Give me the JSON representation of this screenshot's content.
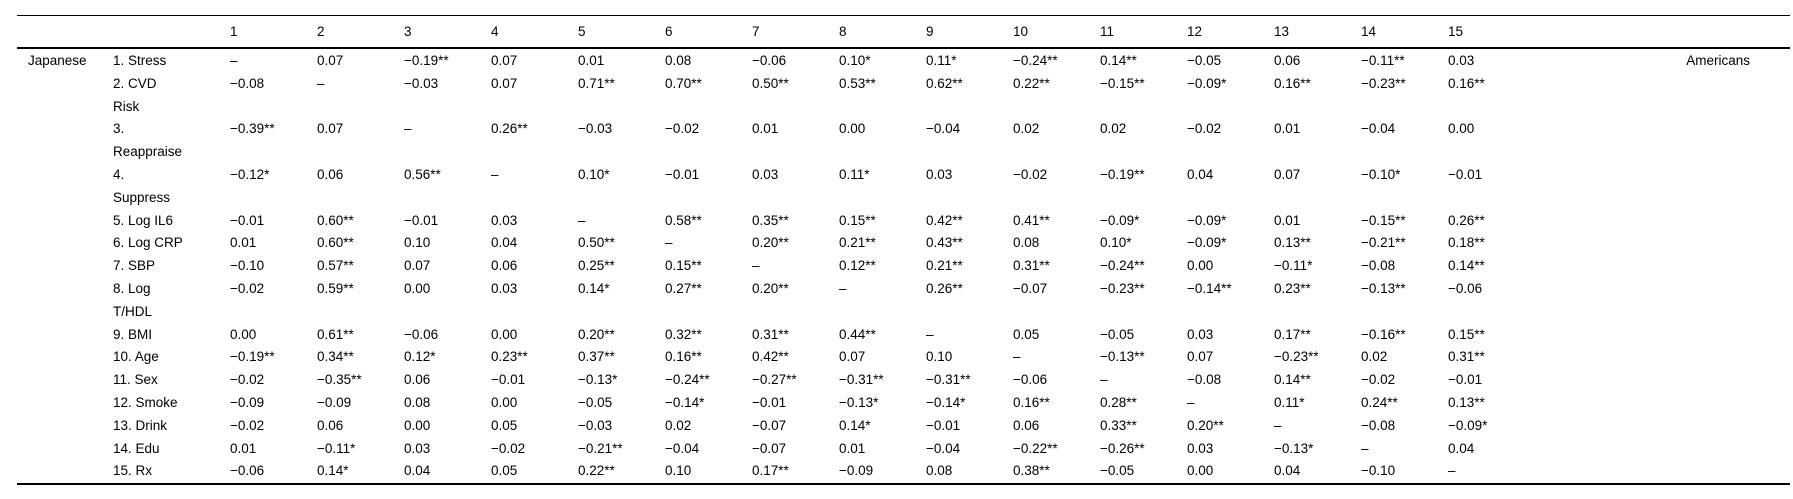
{
  "table": {
    "row_group_label": "Japanese",
    "col_group_label": "Americans",
    "col_headers": [
      "1",
      "2",
      "3",
      "4",
      "5",
      "6",
      "7",
      "8",
      "9",
      "10",
      "11",
      "12",
      "13",
      "14",
      "15"
    ],
    "diagonal_marker": "–",
    "rows": [
      {
        "name": "1. Stress",
        "values": [
          "–",
          "0.07",
          "−0.19**",
          "0.07",
          "0.01",
          "0.08",
          "−0.06",
          "0.10*",
          "0.11*",
          "−0.24**",
          "0.14**",
          "−0.05",
          "0.06",
          "−0.11**",
          "0.03"
        ]
      },
      {
        "name": "2. CVD\nRisk",
        "values": [
          "−0.08",
          "–",
          "−0.03",
          "0.07",
          "0.71**",
          "0.70**",
          "0.50**",
          "0.53**",
          "0.62**",
          "0.22**",
          "−0.15**",
          "−0.09*",
          "0.16**",
          "−0.23**",
          "0.16**"
        ]
      },
      {
        "name": "3.\nReappraise",
        "values": [
          "−0.39**",
          "0.07",
          "–",
          "0.26**",
          "−0.03",
          "−0.02",
          "0.01",
          "0.00",
          "−0.04",
          "0.02",
          "0.02",
          "−0.02",
          "0.01",
          "−0.04",
          "0.00"
        ]
      },
      {
        "name": "4.\nSuppress",
        "values": [
          "−0.12*",
          "0.06",
          "0.56**",
          "–",
          "0.10*",
          "−0.01",
          "0.03",
          "0.11*",
          "0.03",
          "−0.02",
          "−0.19**",
          "0.04",
          "0.07",
          "−0.10*",
          "−0.01"
        ]
      },
      {
        "name": "5. Log IL6",
        "values": [
          "−0.01",
          "0.60**",
          "−0.01",
          "0.03",
          "–",
          "0.58**",
          "0.35**",
          "0.15**",
          "0.42**",
          "0.41**",
          "−0.09*",
          "−0.09*",
          "0.01",
          "−0.15**",
          "0.26**"
        ]
      },
      {
        "name": "6. Log CRP",
        "values": [
          "0.01",
          "0.60**",
          "0.10",
          "0.04",
          "0.50**",
          "–",
          "0.20**",
          "0.21**",
          "0.43**",
          "0.08",
          "0.10*",
          "−0.09*",
          "0.13**",
          "−0.21**",
          "0.18**"
        ]
      },
      {
        "name": "7. SBP",
        "values": [
          "−0.10",
          "0.57**",
          "0.07",
          "0.06",
          "0.25**",
          "0.15**",
          "–",
          "0.12**",
          "0.21**",
          "0.31**",
          "−0.24**",
          "0.00",
          "−0.11*",
          "−0.08",
          "0.14**"
        ]
      },
      {
        "name": "8. Log\nT/HDL",
        "values": [
          "−0.02",
          "0.59**",
          "0.00",
          "0.03",
          "0.14*",
          "0.27**",
          "0.20**",
          "–",
          "0.26**",
          "−0.07",
          "−0.23**",
          "−0.14**",
          "0.23**",
          "−0.13**",
          "−0.06"
        ]
      },
      {
        "name": "9. BMI",
        "values": [
          "0.00",
          "0.61**",
          "−0.06",
          "0.00",
          "0.20**",
          "0.32**",
          "0.31**",
          "0.44**",
          "–",
          "0.05",
          "−0.05",
          "0.03",
          "0.17**",
          "−0.16**",
          "0.15**"
        ]
      },
      {
        "name": "10. Age",
        "values": [
          "−0.19**",
          "0.34**",
          "0.12*",
          "0.23**",
          "0.37**",
          "0.16**",
          "0.42**",
          "0.07",
          "0.10",
          "–",
          "−0.13**",
          "0.07",
          "−0.23**",
          "0.02",
          "0.31**"
        ]
      },
      {
        "name": "11. Sex",
        "values": [
          "−0.02",
          "−0.35**",
          "0.06",
          "−0.01",
          "−0.13*",
          "−0.24**",
          "−0.27**",
          "−0.31**",
          "−0.31**",
          "−0.06",
          "–",
          "−0.08",
          "0.14**",
          "−0.02",
          "−0.01"
        ]
      },
      {
        "name": "12. Smoke",
        "values": [
          "−0.09",
          "−0.09",
          "0.08",
          "0.00",
          "−0.05",
          "−0.14*",
          "−0.01",
          "−0.13*",
          "−0.14*",
          "0.16**",
          "0.28**",
          "–",
          "0.11*",
          "0.24**",
          "0.13**"
        ]
      },
      {
        "name": "13. Drink",
        "values": [
          "−0.02",
          "0.06",
          "0.00",
          "0.05",
          "−0.03",
          "0.02",
          "−0.07",
          "0.14*",
          "−0.01",
          "0.06",
          "0.33**",
          "0.20**",
          "–",
          "−0.08",
          "−0.09*"
        ]
      },
      {
        "name": "14. Edu",
        "values": [
          "0.01",
          "−0.11*",
          "0.03",
          "−0.02",
          "−0.21**",
          "−0.04",
          "−0.07",
          "0.01",
          "−0.04",
          "−0.22**",
          "−0.26**",
          "0.03",
          "−0.13*",
          "–",
          "0.04"
        ]
      },
      {
        "name": "15. Rx",
        "values": [
          "−0.06",
          "0.14*",
          "0.04",
          "0.05",
          "0.22**",
          "0.10",
          "0.17**",
          "−0.09",
          "0.08",
          "0.38**",
          "−0.05",
          "0.00",
          "0.04",
          "−0.10",
          "–"
        ]
      }
    ]
  }
}
